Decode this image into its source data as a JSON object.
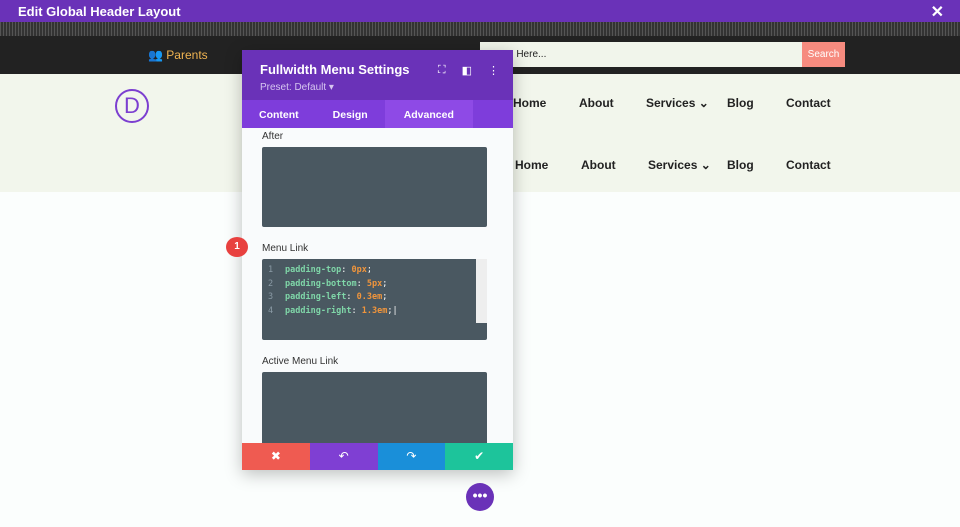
{
  "window": {
    "title": "Edit Global Header Layout",
    "close_icon": "close-icon"
  },
  "topbar": {
    "parents_label": "Parents",
    "search_placeholder": "n Here...",
    "search_button": "Search"
  },
  "logo": {
    "letter": "D"
  },
  "nav_rows": [
    [
      "Home",
      "About",
      "Services",
      "Blog",
      "Contact"
    ],
    [
      "Home",
      "About",
      "Services",
      "Blog",
      "Contact"
    ]
  ],
  "panel": {
    "title": "Fullwidth Menu Settings",
    "preset": "Preset: Default ▾",
    "tabs": [
      "Content",
      "Design",
      "Advanced"
    ],
    "active_tab": "Advanced",
    "fields": {
      "after": "After",
      "menu_link": "Menu Link",
      "active_menu_link": "Active Menu Link"
    },
    "code": [
      {
        "n": "1",
        "prop": "padding-top",
        "val": "0px"
      },
      {
        "n": "2",
        "prop": "padding-bottom",
        "val": "5px"
      },
      {
        "n": "3",
        "prop": "padding-left",
        "val": "0.3em"
      },
      {
        "n": "4",
        "prop": "padding-right",
        "val": "1.3em"
      }
    ],
    "footer_colors": [
      "#ef5b51",
      "#7f3fd3",
      "#1a8fd9",
      "#1dc49b"
    ]
  },
  "badge": "1"
}
